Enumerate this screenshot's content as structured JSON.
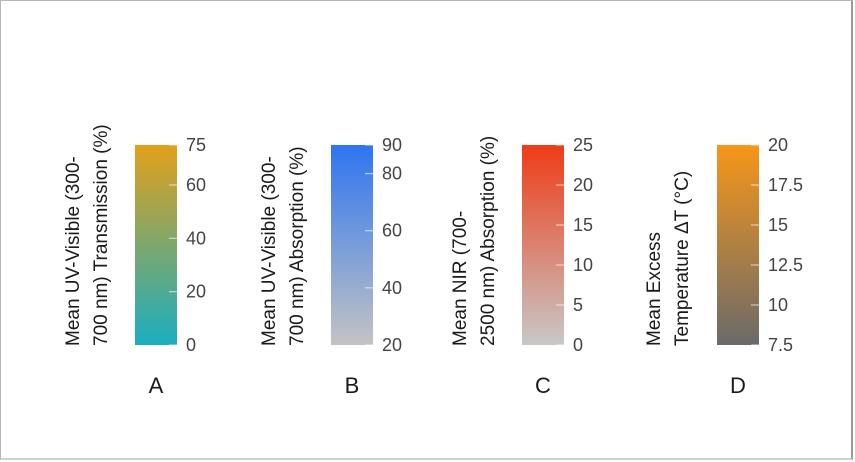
{
  "chart_data": [
    {
      "type": "colorbar",
      "panel": "A",
      "title_lines": [
        "Mean UV-Visible (300-",
        "700 nm)  Transmission (%)"
      ],
      "range": [
        0,
        75
      ],
      "ticks": [
        0,
        20,
        40,
        60,
        75
      ],
      "tick_labels": [
        "0",
        "20",
        "40",
        "60",
        "75"
      ],
      "color_low": "#1aaec0",
      "color_high": "#e3a019"
    },
    {
      "type": "colorbar",
      "panel": "B",
      "title_lines": [
        "Mean UV-Visible (300-",
        "700 nm) Absorption (%)"
      ],
      "range": [
        20,
        90
      ],
      "ticks": [
        20,
        40,
        60,
        80,
        90
      ],
      "tick_labels": [
        "20",
        "40",
        "60",
        "80",
        "90"
      ],
      "color_low": "#c3c3c3",
      "color_high": "#2e75f0"
    },
    {
      "type": "colorbar",
      "panel": "C",
      "title_lines": [
        "Mean NIR (700-",
        "2500 nm) Absorption (%)"
      ],
      "range": [
        0,
        25
      ],
      "ticks": [
        0,
        5,
        10,
        15,
        20,
        25
      ],
      "tick_labels": [
        "0",
        "5",
        "10",
        "15",
        "20",
        "25"
      ],
      "color_low": "#c8c8c8",
      "color_high": "#ee3c17"
    },
    {
      "type": "colorbar",
      "panel": "D",
      "title_lines": [
        "Mean Excess",
        "Temperature ΔT (°C)"
      ],
      "range": [
        7.5,
        20
      ],
      "ticks": [
        7.5,
        10,
        12.5,
        15,
        17.5,
        20
      ],
      "tick_labels": [
        "7.5",
        "10",
        "12.5",
        "15",
        "17.5",
        "20"
      ],
      "color_low": "#6a6a6a",
      "color_high": "#f7961a"
    }
  ]
}
